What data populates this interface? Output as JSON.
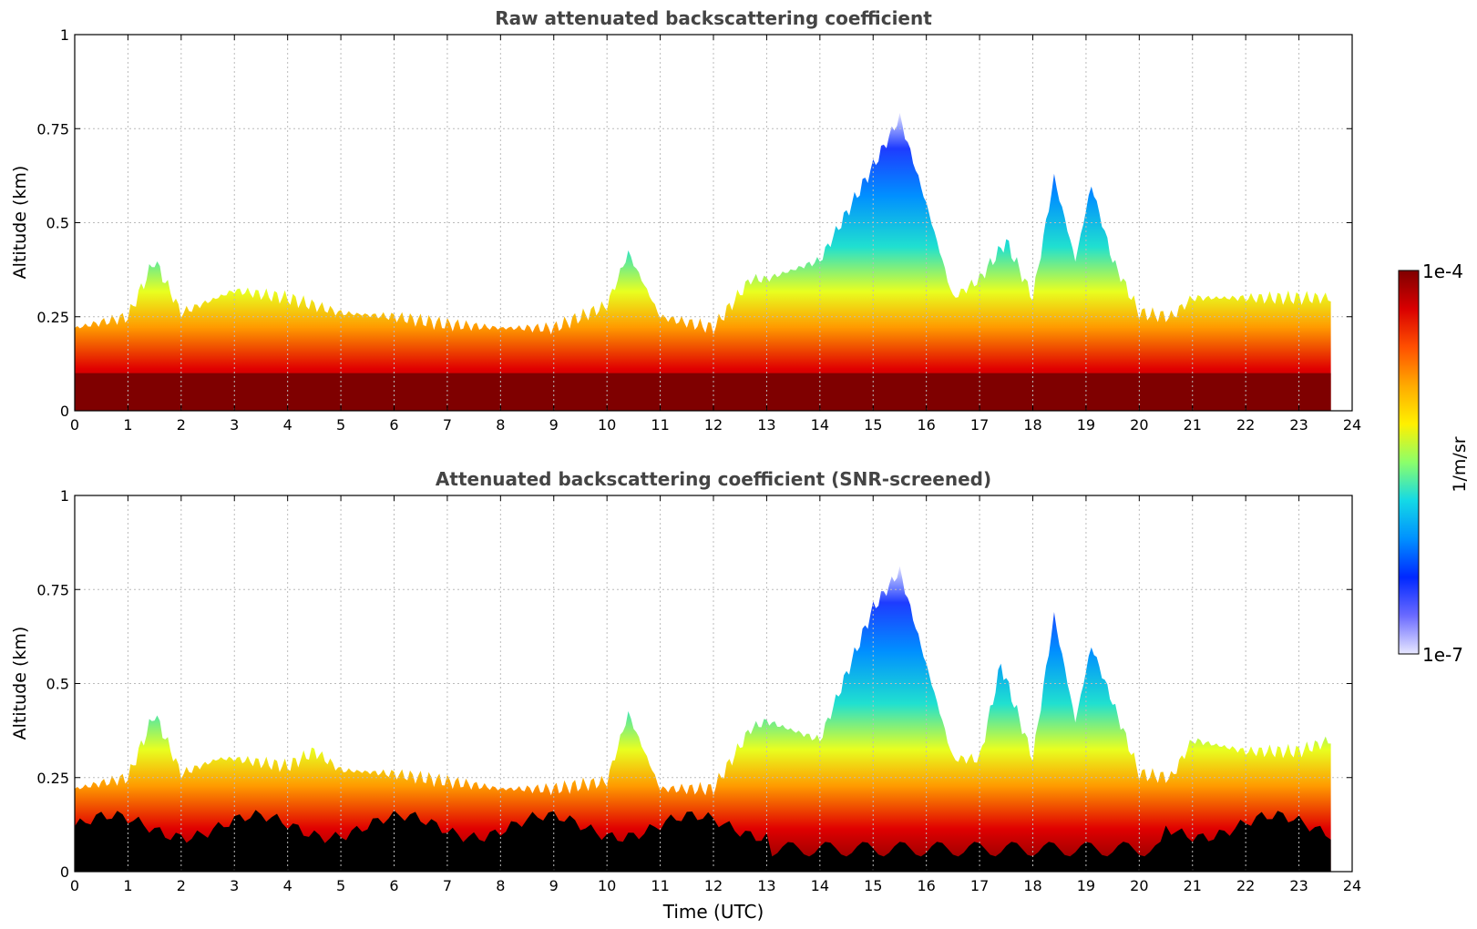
{
  "chart_data": [
    {
      "type": "heatmap",
      "title": "Raw attenuated backscattering coefficient",
      "xlabel": "",
      "ylabel": "Altitude (km)",
      "xlim": [
        0,
        24
      ],
      "ylim": [
        0,
        1
      ],
      "xticks": [
        "0",
        "1",
        "2",
        "3",
        "4",
        "5",
        "6",
        "7",
        "8",
        "9",
        "10",
        "11",
        "12",
        "13",
        "14",
        "15",
        "16",
        "17",
        "18",
        "19",
        "20",
        "21",
        "22",
        "23",
        "24"
      ],
      "yticks": [
        "0",
        "0.25",
        "0.5",
        "0.75",
        "1"
      ],
      "grid": true,
      "data_end_hour": 23.6,
      "layer_top_km": [
        [
          0,
          0.22
        ],
        [
          1,
          0.25
        ],
        [
          1.5,
          0.4
        ],
        [
          2,
          0.26
        ],
        [
          3,
          0.32
        ],
        [
          4,
          0.3
        ],
        [
          5,
          0.26
        ],
        [
          6,
          0.25
        ],
        [
          7,
          0.23
        ],
        [
          8,
          0.22
        ],
        [
          9,
          0.22
        ],
        [
          10,
          0.28
        ],
        [
          10.4,
          0.42
        ],
        [
          11,
          0.25
        ],
        [
          12,
          0.22
        ],
        [
          12.7,
          0.35
        ],
        [
          13,
          0.35
        ],
        [
          14,
          0.4
        ],
        [
          15,
          0.65
        ],
        [
          15.5,
          0.78
        ],
        [
          16,
          0.55
        ],
        [
          16.5,
          0.3
        ],
        [
          17,
          0.35
        ],
        [
          17.5,
          0.45
        ],
        [
          18,
          0.3
        ],
        [
          18.4,
          0.62
        ],
        [
          18.8,
          0.4
        ],
        [
          19.1,
          0.6
        ],
        [
          19.5,
          0.4
        ],
        [
          20,
          0.26
        ],
        [
          20.6,
          0.25
        ],
        [
          21,
          0.3
        ],
        [
          22,
          0.3
        ],
        [
          23,
          0.3
        ],
        [
          23.6,
          0.3
        ]
      ],
      "saturated_top_km": 0.1
    },
    {
      "type": "heatmap",
      "title": "Attenuated backscattering coefficient (SNR-screened)",
      "xlabel": "Time (UTC)",
      "ylabel": "Altitude (km)",
      "xlim": [
        0,
        24
      ],
      "ylim": [
        0,
        1
      ],
      "xticks": [
        "0",
        "1",
        "2",
        "3",
        "4",
        "5",
        "6",
        "7",
        "8",
        "9",
        "10",
        "11",
        "12",
        "13",
        "14",
        "15",
        "16",
        "17",
        "18",
        "19",
        "20",
        "21",
        "22",
        "23",
        "24"
      ],
      "yticks": [
        "0",
        "0.25",
        "0.5",
        "0.75",
        "1"
      ],
      "grid": true,
      "data_end_hour": 23.6,
      "layer_top_km": [
        [
          0,
          0.22
        ],
        [
          1,
          0.25
        ],
        [
          1.5,
          0.42
        ],
        [
          2,
          0.26
        ],
        [
          2.7,
          0.3
        ],
        [
          3,
          0.3
        ],
        [
          4,
          0.28
        ],
        [
          4.5,
          0.32
        ],
        [
          5,
          0.27
        ],
        [
          6,
          0.26
        ],
        [
          7,
          0.24
        ],
        [
          8,
          0.22
        ],
        [
          9,
          0.22
        ],
        [
          10,
          0.24
        ],
        [
          10.4,
          0.42
        ],
        [
          11,
          0.22
        ],
        [
          12,
          0.22
        ],
        [
          12.7,
          0.38
        ],
        [
          13,
          0.4
        ],
        [
          14,
          0.35
        ],
        [
          15,
          0.7
        ],
        [
          15.5,
          0.8
        ],
        [
          16,
          0.55
        ],
        [
          16.5,
          0.3
        ],
        [
          17,
          0.3
        ],
        [
          17.4,
          0.55
        ],
        [
          18,
          0.3
        ],
        [
          18.4,
          0.68
        ],
        [
          18.8,
          0.4
        ],
        [
          19.1,
          0.6
        ],
        [
          19.5,
          0.45
        ],
        [
          20,
          0.26
        ],
        [
          20.6,
          0.25
        ],
        [
          21,
          0.35
        ],
        [
          22,
          0.32
        ],
        [
          23,
          0.32
        ],
        [
          23.6,
          0.35
        ]
      ],
      "black_top_km": 0.12
    }
  ],
  "colorbar": {
    "label": "1/m/sr",
    "max_label": "1e-4",
    "min_label": "1e-7",
    "colors": [
      "#7f0000",
      "#d90000",
      "#ff5000",
      "#ffaa00",
      "#fff000",
      "#8cff6a",
      "#14d9e6",
      "#0090ff",
      "#0028ff",
      "#6a6aff",
      "#e8e8ff"
    ]
  }
}
